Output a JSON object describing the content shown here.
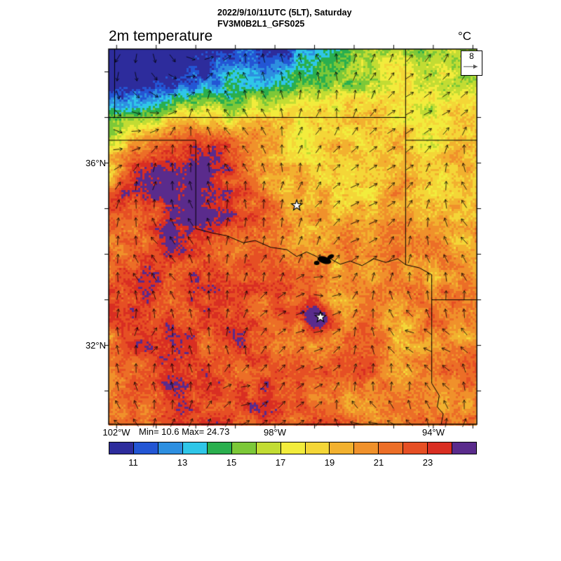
{
  "header": {
    "datetime_line": "2022/9/10/11UTC (5LT), Saturday",
    "model_line": "FV3M0B2L1_GFS025",
    "variable_title": "2m temperature",
    "units_label": "°C"
  },
  "wind_reference": {
    "value": "8"
  },
  "stats": {
    "min_max_label": "Min= 10.6 Max= 24.73"
  },
  "axes": {
    "lat_labels": [
      {
        "value": 36,
        "label": "36°N"
      },
      {
        "value": 32,
        "label": "32°N"
      }
    ],
    "lon_labels": [
      {
        "value": 102,
        "label": "102°W"
      },
      {
        "value": 98,
        "label": "98°W"
      },
      {
        "value": 94,
        "label": "94°W"
      }
    ]
  },
  "chart_data": {
    "type": "heatmap",
    "title": "2m temperature",
    "units": "°C",
    "valid_time": "2022/9/10/11UTC (5LT), Saturday",
    "model_run": "FV3M0B2L1_GFS025",
    "field_min": 10.6,
    "field_max": 24.73,
    "lon_axis": {
      "range_deg_w": [
        102.2,
        92.9
      ],
      "tick_interval_deg": 1,
      "labeled_ticks": [
        102,
        98,
        94
      ]
    },
    "lat_axis": {
      "range_deg_n": [
        30.27,
        38.5
      ],
      "tick_interval_deg": 1,
      "labeled_ticks": [
        36,
        32
      ]
    },
    "colorbar": {
      "orientation": "horizontal",
      "segment_edges": [
        10,
        11,
        12,
        13,
        14,
        15,
        16,
        17,
        18,
        19,
        20,
        21,
        22,
        23,
        24
      ],
      "tick_labels": [
        "11",
        "13",
        "15",
        "17",
        "19",
        "21",
        "23"
      ],
      "colors": [
        "#2d2c9c",
        "#2356d4",
        "#2d8fe0",
        "#2fc6e8",
        "#2aaf4e",
        "#7cc838",
        "#c2dc33",
        "#f2ec3c",
        "#f4d637",
        "#f2b12f",
        "#f0912b",
        "#ec6e27",
        "#e64f24",
        "#d92e22",
        "#5a2b8c"
      ]
    },
    "overlays": {
      "wind_vectors": {
        "style": "arrows",
        "reference_value": 8
      },
      "city_markers": [
        {
          "symbol": "star",
          "lon_w": 97.45,
          "lat_n": 35.07
        },
        {
          "symbol": "star",
          "lon_w": 96.85,
          "lat_n": 32.62
        }
      ],
      "water_bodies": [
        {
          "symbol": "filled-black",
          "lon_w": 96.75,
          "lat_n": 33.87
        }
      ],
      "state_borders": true
    },
    "field_summary": [
      {
        "region": "northwest corner high plains",
        "approx_range_c": [
          10.6,
          16
        ]
      },
      {
        "region": "panhandle / western Oklahoma pockets",
        "approx_range_c": [
          23,
          24.7
        ]
      },
      {
        "region": "central Oklahoma",
        "approx_range_c": [
          18,
          21
        ]
      },
      {
        "region": "northeast yellow-green patches",
        "approx_range_c": [
          15,
          18
        ]
      },
      {
        "region": "central and west Texas",
        "approx_range_c": [
          20,
          23
        ]
      },
      {
        "region": "urban hot spot near southern star",
        "approx_range_c": [
          24,
          24.7
        ]
      }
    ]
  }
}
